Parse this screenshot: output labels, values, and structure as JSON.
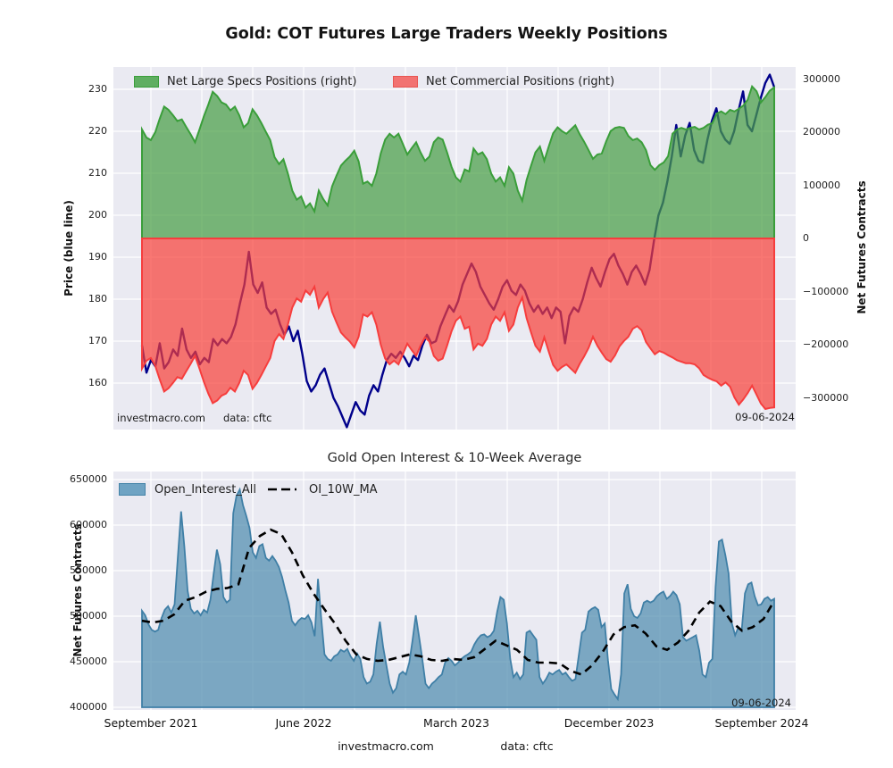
{
  "header": {
    "title": "Gold: COT Futures Large Traders Weekly Positions"
  },
  "top_chart": {
    "legend": [
      {
        "label": "Net Large Specs Positions (right)",
        "fill": "#5fae61",
        "border": "#3a9e3a"
      },
      {
        "label": "Net Commercial Positions (right)",
        "fill": "#f27271",
        "border": "#e85552"
      }
    ],
    "ylabel_left": "Price (blue line)",
    "ylabel_right": "Net Futures Contracts",
    "ytick_labels_left": [
      "230",
      "220",
      "210",
      "200",
      "190",
      "180",
      "170",
      "160"
    ],
    "ytick_labels_right": [
      "300000",
      "200000",
      "100000",
      "0",
      "−100000",
      "−200000",
      "−300000"
    ],
    "watermark": "investmacro.com",
    "source": "data: cftc",
    "date_label": "09-06-2024"
  },
  "bottom_chart": {
    "title": "Gold Open Interest & 10-Week Average",
    "legend": [
      {
        "label": "Open_Interest_All",
        "fill": "#6fa3c3",
        "border": "#4584a8"
      },
      {
        "label": "OI_10W_MA",
        "line_color": "#000000"
      }
    ],
    "ylabel_left": "Net Futures Contracts",
    "ytick_labels": [
      "650000",
      "600000",
      "550000",
      "500000",
      "450000",
      "400000"
    ],
    "xtick_labels": [
      "September 2021",
      "June 2022",
      "March 2023",
      "December 2023",
      "September 2024"
    ],
    "date_label": "09-06-2024"
  },
  "footer": {
    "watermark": "investmacro.com",
    "source": "data: cftc"
  },
  "colors": {
    "plot_bg": "#eaeaf2",
    "grid": "#ffffff",
    "specs_fill": "rgba(73,160,70,0.72)",
    "specs_edge": "#3a9e3a",
    "comm_fill": "rgba(248,62,56,0.70)",
    "comm_edge": "#f63d3d",
    "price_line": "#00008b",
    "oi_fill": "rgba(81,141,175,0.72)",
    "oi_edge": "#3f7fa6",
    "ma_line": "#000000"
  },
  "chart_data": [
    {
      "id": "cot_positions",
      "type": "area",
      "title": "Gold: COT Futures Large Traders Weekly Positions",
      "x_axis": "weekly, shared with bottom chart (Sep 2021 - Sep 2024)",
      "ylabel_left": "Price (blue line)",
      "yticks_left": [
        230,
        220,
        210,
        200,
        190,
        180,
        170,
        160
      ],
      "ylabel_right": "Net Futures Contracts",
      "yticks_right": [
        300000,
        200000,
        100000,
        0,
        -100000,
        -200000,
        -300000
      ],
      "grid": true,
      "legend_position": "top-left inside",
      "series": [
        {
          "name": "Net Large Specs Positions (right)",
          "axis": "right",
          "render": "closed area from 0",
          "values": [
            205000,
            190000,
            185000,
            200000,
            225000,
            248000,
            242000,
            232000,
            221000,
            224000,
            210000,
            196000,
            181000,
            205000,
            230000,
            252000,
            276000,
            268000,
            256000,
            252000,
            241000,
            248000,
            232000,
            209000,
            217000,
            243000,
            232000,
            217000,
            201000,
            185000,
            153000,
            140000,
            149000,
            122000,
            90000,
            73000,
            79000,
            58000,
            66000,
            51000,
            90000,
            74000,
            62000,
            98000,
            118000,
            137000,
            146000,
            154000,
            165000,
            145000,
            103000,
            107000,
            99000,
            122000,
            160000,
            186000,
            197000,
            190000,
            197000,
            178000,
            158000,
            170000,
            181000,
            162000,
            146000,
            154000,
            181000,
            190000,
            186000,
            162000,
            135000,
            115000,
            107000,
            130000,
            126000,
            169000,
            158000,
            162000,
            149000,
            122000,
            107000,
            115000,
            99000,
            134000,
            122000,
            90000,
            71000,
            110000,
            137000,
            162000,
            173000,
            146000,
            173000,
            198000,
            209000,
            202000,
            197000,
            205000,
            213000,
            196000,
            182000,
            166000,
            150000,
            158000,
            160000,
            183000,
            202000,
            208000,
            210000,
            208000,
            193000,
            185000,
            188000,
            181000,
            166000,
            138000,
            129000,
            138000,
            143000,
            155000,
            197000,
            205000,
            208000,
            205000,
            208000,
            210000,
            205000,
            208000,
            214000,
            217000,
            235000,
            239000,
            234000,
            242000,
            239000,
            244000,
            250000,
            261000,
            286000,
            277000,
            256000,
            266000,
            278000,
            284000
          ]
        },
        {
          "name": "Net Commercial Positions (right)",
          "axis": "right",
          "render": "closed area from 0",
          "values": [
            -245000,
            -230000,
            -225000,
            -240000,
            -265000,
            -288000,
            -282000,
            -272000,
            -261000,
            -264000,
            -250000,
            -236000,
            -221000,
            -245000,
            -270000,
            -292000,
            -310000,
            -305000,
            -296000,
            -292000,
            -281000,
            -288000,
            -272000,
            -249000,
            -257000,
            -283000,
            -272000,
            -257000,
            -241000,
            -225000,
            -193000,
            -180000,
            -189000,
            -162000,
            -130000,
            -113000,
            -119000,
            -98000,
            -106000,
            -91000,
            -130000,
            -114000,
            -102000,
            -138000,
            -158000,
            -177000,
            -186000,
            -194000,
            -205000,
            -185000,
            -143000,
            -147000,
            -139000,
            -162000,
            -200000,
            -226000,
            -237000,
            -230000,
            -237000,
            -218000,
            -198000,
            -210000,
            -221000,
            -202000,
            -186000,
            -194000,
            -221000,
            -230000,
            -226000,
            -202000,
            -175000,
            -155000,
            -147000,
            -170000,
            -166000,
            -209000,
            -198000,
            -202000,
            -189000,
            -162000,
            -147000,
            -155000,
            -139000,
            -174000,
            -162000,
            -130000,
            -111000,
            -150000,
            -177000,
            -202000,
            -213000,
            -186000,
            -213000,
            -238000,
            -249000,
            -242000,
            -237000,
            -245000,
            -253000,
            -236000,
            -222000,
            -206000,
            -185000,
            -202000,
            -215000,
            -227000,
            -232000,
            -220000,
            -203000,
            -193000,
            -185000,
            -170000,
            -165000,
            -173000,
            -195000,
            -207000,
            -218000,
            -212000,
            -215000,
            -220000,
            -224000,
            -229000,
            -232000,
            -235000,
            -235000,
            -237000,
            -244000,
            -257000,
            -262000,
            -266000,
            -269000,
            -277000,
            -271000,
            -279000,
            -299000,
            -313000,
            -303000,
            -291000,
            -277000,
            -294000,
            -311000,
            -321000,
            -319000,
            -318000
          ]
        },
        {
          "name": "Price (blue line)",
          "axis": "left",
          "render": "line under fills",
          "values": [
            169,
            162.5,
            165.5,
            164,
            169.5,
            163.5,
            165,
            168,
            166.5,
            173,
            168,
            166,
            167.5,
            164.5,
            166,
            165,
            170.5,
            169,
            170.5,
            169.5,
            171,
            174,
            179,
            183.5,
            191.3,
            183.5,
            181.5,
            184,
            178,
            176.5,
            177.5,
            174,
            171.5,
            173.5,
            170,
            172.5,
            167,
            160.5,
            158,
            159.5,
            162,
            163.5,
            160,
            156.5,
            154.5,
            152,
            149.5,
            152.5,
            155.5,
            153.5,
            152.5,
            157,
            159.5,
            158,
            162,
            165.5,
            167,
            166,
            167.5,
            166,
            164,
            166.5,
            165.5,
            169,
            171.5,
            169.5,
            170,
            173.5,
            176,
            178.5,
            177,
            179.5,
            183.5,
            186,
            188.5,
            186.5,
            183,
            181,
            179,
            177.5,
            180,
            183,
            184.5,
            182,
            181,
            183.5,
            182,
            179,
            177,
            178.5,
            176.5,
            178,
            175.5,
            178,
            177,
            169.5,
            176,
            178,
            177,
            180,
            184,
            187.5,
            185,
            183,
            186.5,
            189.5,
            190.8,
            188,
            186,
            183.5,
            186.5,
            188,
            186,
            183.5,
            187,
            194,
            200,
            203,
            208,
            214,
            221.5,
            214,
            219,
            222,
            215.5,
            213,
            212.5,
            218,
            222.5,
            225.5,
            220,
            218,
            217,
            220,
            225,
            229.5,
            221.5,
            220,
            224,
            228,
            231.5,
            233.5,
            230.5
          ]
        }
      ]
    },
    {
      "id": "open_interest",
      "type": "area",
      "title": "Gold Open Interest & 10-Week Average",
      "ylabel": "Net Futures Contracts",
      "yticks": [
        650000,
        600000,
        550000,
        500000,
        450000,
        400000
      ],
      "ylim": [
        400000,
        650000
      ],
      "xtick_labels": [
        "September 2021",
        "June 2022",
        "March 2023",
        "December 2023",
        "September 2024"
      ],
      "grid": true,
      "legend_position": "top-left inside",
      "series": [
        {
          "name": "Open_Interest_All",
          "render": "area",
          "values": [
            506000,
            501000,
            491000,
            485000,
            483000,
            485000,
            498000,
            507000,
            511000,
            504000,
            513000,
            564000,
            615000,
            577000,
            528000,
            508000,
            503000,
            506000,
            501000,
            507000,
            504000,
            518000,
            547000,
            573000,
            557000,
            521000,
            515000,
            518000,
            613000,
            632000,
            639000,
            622000,
            610000,
            597000,
            570000,
            564000,
            577000,
            579000,
            564000,
            561000,
            566000,
            561000,
            554000,
            543000,
            528000,
            515000,
            495000,
            490000,
            495000,
            498000,
            497000,
            501000,
            493000,
            478000,
            541000,
            498000,
            458000,
            453000,
            451000,
            456000,
            458000,
            463000,
            461000,
            464000,
            456000,
            451000,
            459000,
            453000,
            433000,
            426000,
            428000,
            436000,
            470000,
            494000,
            466000,
            446000,
            426000,
            416000,
            421000,
            436000,
            439000,
            436000,
            449000,
            473000,
            501000,
            478000,
            453000,
            426000,
            421000,
            426000,
            429000,
            433000,
            436000,
            449000,
            454000,
            451000,
            446000,
            449000,
            453000,
            456000,
            458000,
            461000,
            469000,
            475000,
            479000,
            480000,
            477000,
            479000,
            484000,
            505000,
            521000,
            518000,
            492000,
            453000,
            433000,
            438000,
            431000,
            436000,
            482000,
            484000,
            479000,
            474000,
            433000,
            426000,
            431000,
            438000,
            436000,
            439000,
            441000,
            436000,
            438000,
            433000,
            429000,
            431000,
            456000,
            482000,
            485000,
            505000,
            508000,
            510000,
            507000,
            488000,
            492000,
            451000,
            420000,
            414000,
            409000,
            436000,
            525000,
            535000,
            508000,
            500000,
            498000,
            503000,
            515000,
            517000,
            515000,
            517000,
            522000,
            525000,
            527000,
            519000,
            522000,
            527000,
            523000,
            513000,
            477000,
            473000,
            475000,
            477000,
            479000,
            462000,
            436000,
            433000,
            449000,
            453000,
            532000,
            582000,
            584000,
            567000,
            547000,
            492000,
            479000,
            488000,
            484000,
            525000,
            535000,
            537000,
            522000,
            512000,
            513000,
            519000,
            521000,
            517000,
            519000
          ]
        },
        {
          "name": "OI_10W_MA",
          "render": "dashed line",
          "values": [
            495000,
            493000,
            495000,
            502000,
            517000,
            521000,
            527000,
            530000,
            531000,
            535000,
            575000,
            588000,
            595000,
            590000,
            570000,
            545000,
            525000,
            508000,
            492000,
            473000,
            458000,
            453000,
            451000,
            452000,
            455000,
            458000,
            456000,
            452000,
            451000,
            453000,
            452000,
            455000,
            464000,
            473000,
            468000,
            463000,
            452000,
            449000,
            449000,
            448000,
            440000,
            436000,
            446000,
            461000,
            480000,
            488000,
            490000,
            481000,
            467000,
            463000,
            471000,
            484000,
            504000,
            516000,
            511000,
            494000,
            484000,
            488000,
            497000,
            517000
          ]
        }
      ]
    }
  ]
}
